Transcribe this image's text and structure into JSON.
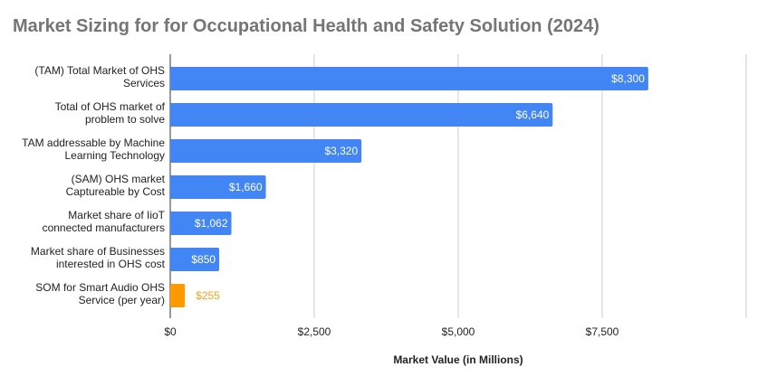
{
  "chart_data": {
    "type": "bar",
    "orientation": "horizontal",
    "title": "Market Sizing for for Occupational Health and Safety Solution (2024)",
    "xlabel": "Market Value (in Millions)",
    "ylabel": "",
    "categories": [
      [
        "(TAM) Total Market of OHS",
        "Services"
      ],
      [
        "Total of OHS market of",
        "problem to solve"
      ],
      [
        "TAM addressable by Machine",
        "Learning Technology"
      ],
      [
        "(SAM) OHS market",
        "Captureable by Cost"
      ],
      [
        "Market share of IioT",
        "connected manufacturers"
      ],
      [
        "Market share of Businesses",
        "interested in OHS cost"
      ],
      [
        "SOM for Smart Audio OHS",
        "Service (per year)"
      ]
    ],
    "values": [
      8300,
      6640,
      3320,
      1660,
      1062,
      850,
      255
    ],
    "value_labels": [
      "$8,300",
      "$6,640",
      "$3,320",
      "$1,660",
      "$1,062",
      "$850",
      "$255"
    ],
    "bar_colors": [
      "#4285F4",
      "#4285F4",
      "#4285F4",
      "#4285F4",
      "#4285F4",
      "#4285F4",
      "#FF9900"
    ],
    "label_colors": [
      "#ffffff",
      "#ffffff",
      "#ffffff",
      "#ffffff",
      "#ffffff",
      "#ffffff",
      "#F4A31A"
    ],
    "xlim": [
      0,
      10000
    ],
    "xticks": [
      0,
      2500,
      5000,
      7500,
      10000
    ],
    "xtick_labels": [
      "$0",
      "$2,500",
      "$5,000",
      "$7,500",
      ""
    ],
    "grid": "vertical",
    "legend": "none"
  }
}
